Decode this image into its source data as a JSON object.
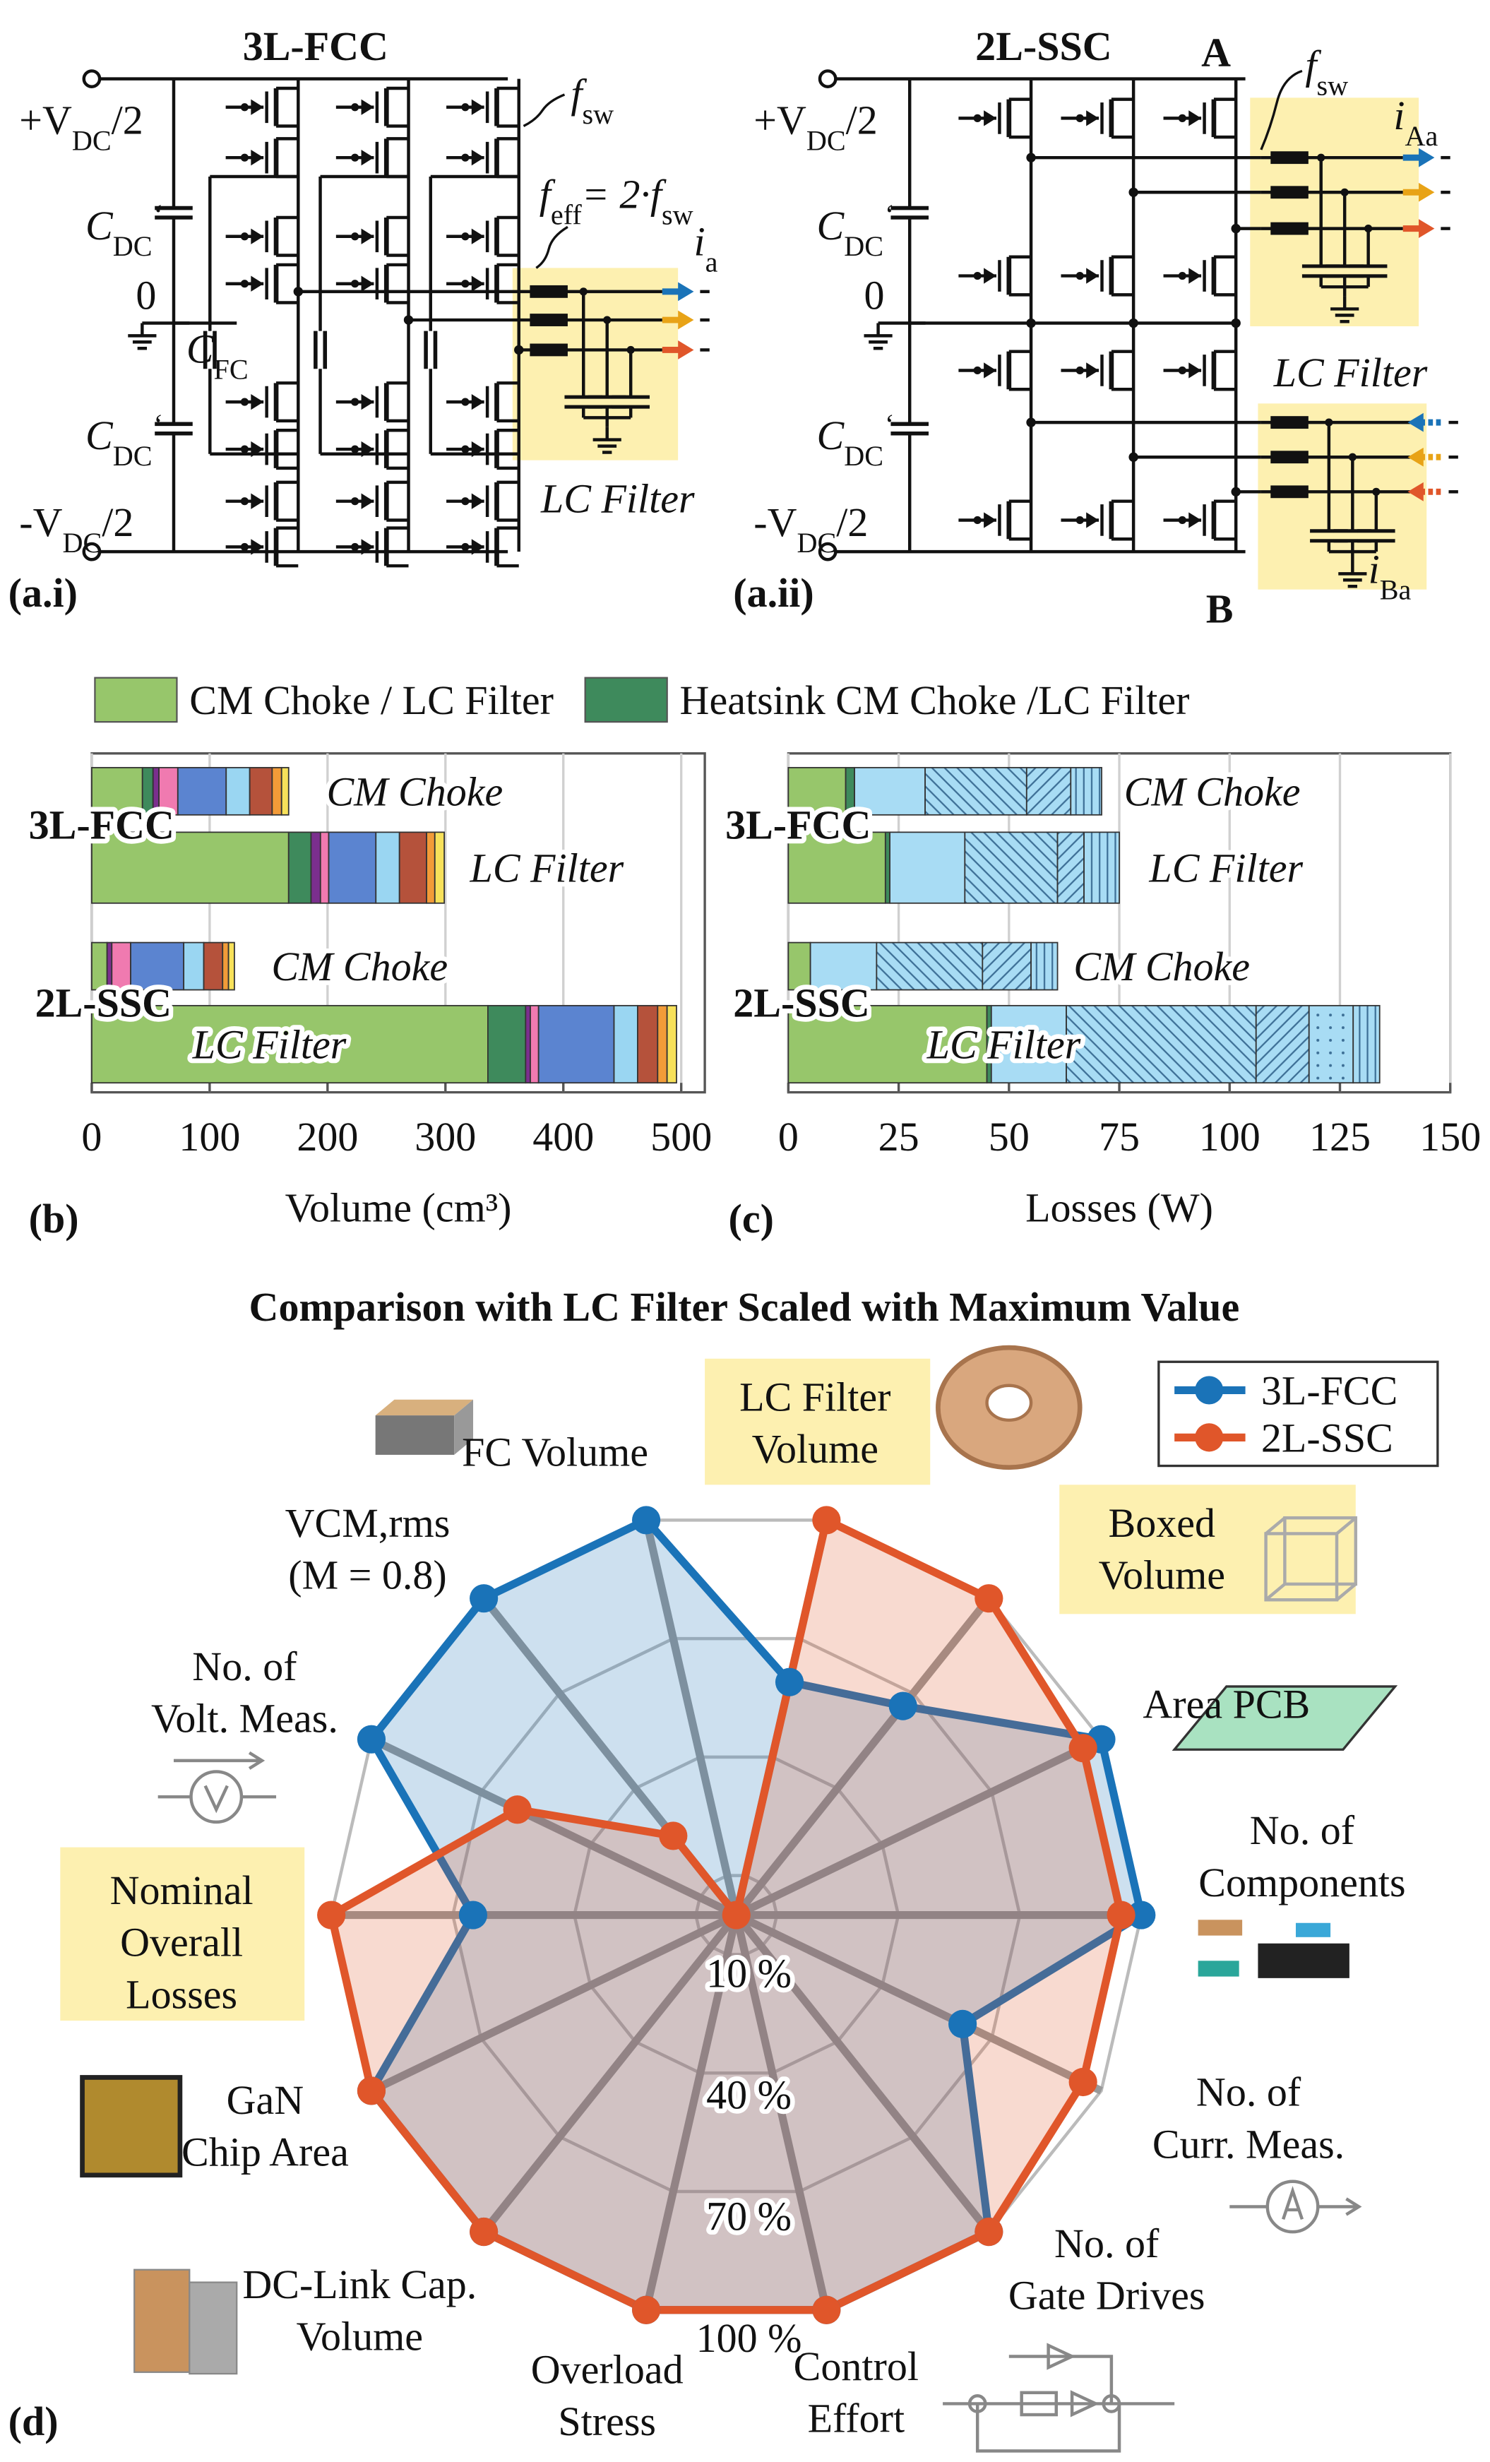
{
  "diagrams": [
    {
      "title": "3L-FCC",
      "panel": "(a.i)",
      "vpos": [
        "+V",
        "DC",
        "/2"
      ],
      "vneg": [
        "-V",
        "DC",
        "/2"
      ],
      "cdc": [
        "C",
        "DC",
        "‘"
      ],
      "zero": "0",
      "cfc": [
        "C",
        "FC"
      ],
      "fsw": [
        "f",
        "sw"
      ],
      "feff": [
        "f",
        "eff",
        "= 2·",
        "f",
        "sw"
      ],
      "current": [
        "i",
        "a"
      ],
      "filter": "LC Filter"
    },
    {
      "title": "2L-SSC",
      "panel": "(a.ii)",
      "vpos": [
        "+V",
        "DC",
        "/2"
      ],
      "vneg": [
        "-V",
        "DC",
        "/2"
      ],
      "cdc": [
        "C",
        "DC",
        "‘"
      ],
      "zero": "0",
      "fsw": [
        "f",
        "sw"
      ],
      "currents": [
        [
          "i",
          "Aa"
        ],
        [
          "i",
          "Ba"
        ]
      ],
      "filter": "LC Filter",
      "legs": [
        "A",
        "B"
      ]
    }
  ],
  "chart_data": [
    {
      "type": "bar",
      "orientation": "horizontal",
      "stacked": true,
      "panel": "(b)",
      "categories": [
        "CM Choke",
        "LC Filter",
        "CM Choke",
        "LC Filter"
      ],
      "groups": [
        "3L-FCC",
        "2L-SSC"
      ],
      "xlabel": "Volume (cm³)",
      "xlim": [
        0,
        520
      ],
      "xticks": [
        0,
        100,
        200,
        300,
        400,
        500
      ],
      "grid": true,
      "series": [
        {
          "name": "CM Choke / LC Filter",
          "color": "#97c66b",
          "values": [
            43,
            167,
            13,
            336
          ]
        },
        {
          "name": "Heatsink CM Choke /LC Filter",
          "color": "#3e8a5c",
          "values": [
            9,
            19,
            0,
            32
          ]
        },
        {
          "color": "#7b2f8e",
          "values": [
            5,
            8,
            4,
            4
          ]
        },
        {
          "color": "#f07ab0",
          "values": [
            16,
            7,
            16,
            7
          ]
        },
        {
          "color": "#5b84d0",
          "values": [
            41,
            40,
            45,
            64
          ]
        },
        {
          "color": "#9ad6f2",
          "values": [
            20,
            20,
            17,
            20
          ]
        },
        {
          "color": "#b5523b",
          "values": [
            19,
            23,
            16,
            17
          ]
        },
        {
          "color": "#f29b38",
          "values": [
            8,
            7,
            5,
            8
          ]
        },
        {
          "color": "#f7e15a",
          "values": [
            6,
            8,
            5,
            8
          ]
        }
      ]
    },
    {
      "type": "bar",
      "orientation": "horizontal",
      "stacked": true,
      "panel": "(c)",
      "categories": [
        "CM Choke",
        "LC Filter",
        "CM Choke",
        "LC Filter"
      ],
      "groups": [
        "3L-FCC",
        "2L-SSC"
      ],
      "xlabel": "Losses (W)",
      "xlim": [
        0,
        150
      ],
      "xticks": [
        0,
        25,
        50,
        75,
        100,
        125,
        150
      ],
      "grid": true,
      "series": [
        {
          "color": "#97c66b",
          "values": [
            13,
            22,
            5,
            45
          ]
        },
        {
          "color": "#3e8a5c",
          "values": [
            2,
            1,
            0,
            1
          ]
        },
        {
          "color": "#a8dcf4",
          "values": [
            16,
            17,
            15,
            17
          ]
        },
        {
          "color": "#a8dcf4",
          "hatch": "backslash",
          "values": [
            23,
            21,
            24,
            43
          ]
        },
        {
          "color": "#a8dcf4",
          "hatch": "slash",
          "values": [
            10,
            6,
            11,
            12
          ]
        },
        {
          "color": "#a8dcf4",
          "hatch": "dots",
          "values": [
            0,
            0,
            0,
            10
          ]
        },
        {
          "color": "#a8dcf4",
          "hatch": "vertical",
          "values": [
            7,
            8,
            6,
            6
          ]
        }
      ]
    },
    {
      "type": "radar",
      "panel": "(d)",
      "title": "Comparison with LC Filter Scaled with Maximum Value",
      "axes": [
        [
          "LC Filter",
          "Volume"
        ],
        [
          "Boxed",
          "Volume"
        ],
        [
          "Area PCB"
        ],
        [
          "No. of",
          "Components"
        ],
        [
          "No. of",
          "Curr. Meas."
        ],
        [
          "No. of",
          "Gate Drives"
        ],
        [
          "Control",
          "Effort"
        ],
        [
          "Overload",
          "Stress"
        ],
        [
          "DC-Link Cap.",
          "Volume"
        ],
        [
          "GaN",
          "Chip Area"
        ],
        [
          "Nominal",
          "Overall",
          "Losses"
        ],
        [
          "No. of",
          "Volt. Meas."
        ],
        [
          "VCM,rms",
          "(M = 0.8)"
        ],
        [
          "FC Volume"
        ]
      ],
      "rlim": [
        0,
        100
      ],
      "rticks": [
        {
          "value": 10,
          "label": "10 %"
        },
        {
          "value": 40,
          "label": "40 %"
        },
        {
          "value": 70,
          "label": "70 %"
        },
        {
          "value": 100,
          "label": "100 %"
        }
      ],
      "legend": "upper right",
      "series": [
        {
          "name": "3L-FCC",
          "color": "#1a73b8",
          "values": [
            59,
            66,
            100,
            100,
            62,
            100,
            100,
            100,
            100,
            100,
            65,
            100,
            100,
            100
          ]
        },
        {
          "name": "2L-SSC",
          "color": "#e0562a",
          "values": [
            100,
            100,
            95,
            95,
            95,
            100,
            100,
            100,
            100,
            100,
            100,
            60,
            25,
            0
          ]
        }
      ]
    }
  ]
}
